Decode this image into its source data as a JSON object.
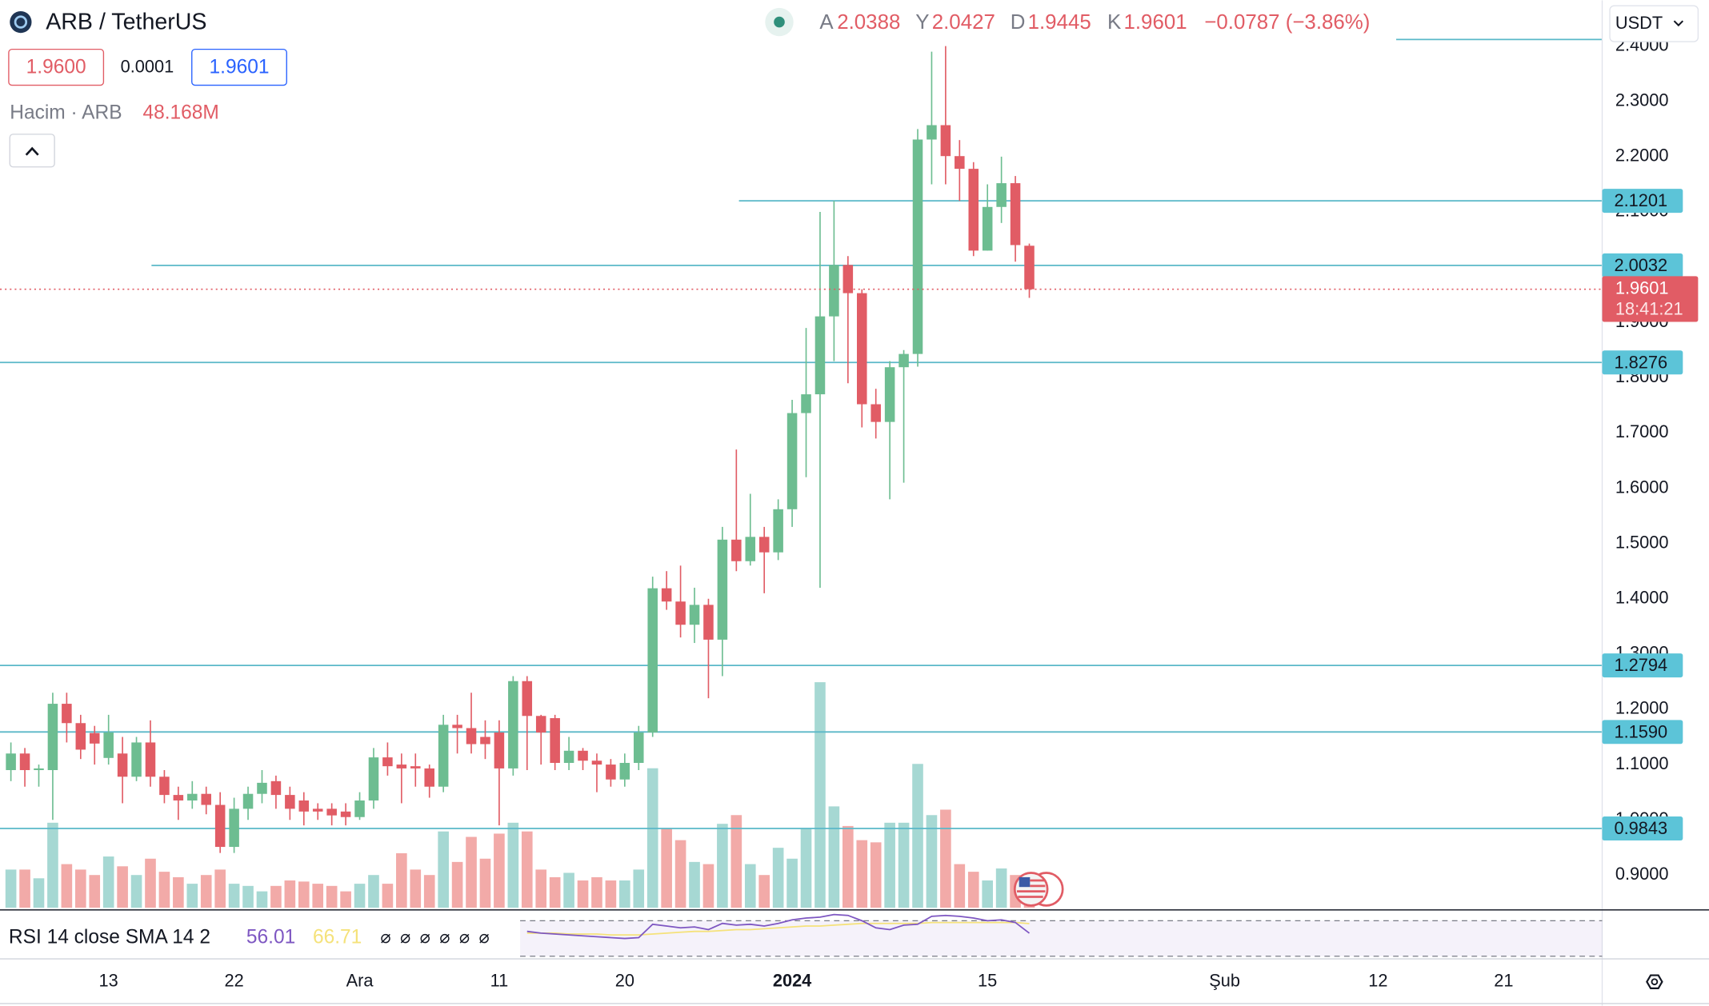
{
  "header": {
    "symbol": "ARB / TetherUS",
    "ohlc": [
      {
        "label": "A",
        "value": "2.0388"
      },
      {
        "label": "Y",
        "value": "2.0427"
      },
      {
        "label": "D",
        "value": "1.9445"
      },
      {
        "label": "K",
        "value": "1.9601"
      }
    ],
    "change": "−0.0787 (−3.86%)"
  },
  "order": {
    "sell": "1.9600",
    "spread": "0.0001",
    "buy": "1.9601"
  },
  "volume_legend": {
    "label": "Hacim · ARB",
    "value": "48.168M"
  },
  "currency": "USDT",
  "countdown": "18:41:21",
  "chart_data": {
    "type": "candlestick",
    "categories": [
      null,
      null,
      null,
      null,
      null,
      null,
      null,
      "13",
      null,
      null,
      null,
      null,
      null,
      null,
      null,
      null,
      "22",
      null,
      null,
      null,
      null,
      null,
      null,
      null,
      null,
      "Ara",
      null,
      null,
      null,
      null,
      null,
      null,
      null,
      null,
      null,
      "11",
      null,
      null,
      null,
      null,
      null,
      null,
      null,
      null,
      "20",
      null,
      null,
      null,
      null,
      null,
      null,
      null,
      null,
      null,
      null,
      null,
      "2024",
      null,
      null,
      null,
      null,
      null,
      null,
      null,
      null,
      null,
      null,
      null,
      null,
      null,
      "15",
      null,
      null,
      null,
      null,
      null,
      null,
      null,
      null,
      null,
      null,
      null,
      null,
      null,
      null,
      null,
      null,
      "Şub",
      null,
      null,
      null,
      null,
      null,
      null,
      null,
      null,
      null,
      null,
      "12",
      null,
      null,
      null,
      null,
      null,
      null,
      null,
      null,
      "21",
      null,
      null,
      null,
      null,
      null,
      null,
      null
    ],
    "open": [
      1.09,
      1.12,
      1.09,
      1.09,
      1.21,
      1.175,
      1.157,
      1.112,
      1.12,
      1.078,
      1.14,
      1.078,
      1.045,
      1.035,
      1.047,
      1.027,
      0.951,
      1.02,
      1.047,
      1.07,
      1.045,
      1.035,
      1.02,
      1.02,
      1.015,
      1.005,
      1.035,
      1.113,
      1.1,
      1.097,
      1.093,
      1.06,
      1.172,
      1.166,
      1.15,
      1.158,
      1.093,
      1.251,
      1.188,
      1.184,
      1.103,
      1.125,
      1.107,
      1.1,
      1.073,
      1.103,
      1.158,
      1.419,
      1.395,
      1.353,
      1.389,
      1.326,
      1.507,
      1.468,
      1.512,
      1.484,
      1.562,
      1.736,
      1.77,
      1.911,
      2.004,
      1.953,
      1.752,
      1.72,
      1.819,
      1.843,
      2.231,
      2.257,
      2.201,
      2.178,
      2.03,
      2.109,
      2.152,
      2.0388,
      null,
      null,
      null,
      null,
      null,
      null,
      null,
      null,
      null,
      null,
      null,
      null,
      null,
      null,
      null,
      null,
      null,
      null,
      null,
      null,
      null,
      null,
      null,
      null,
      null,
      null,
      null,
      null,
      null,
      null,
      null,
      null,
      null,
      null,
      null,
      null,
      null,
      null,
      null,
      null,
      null
    ],
    "high": [
      1.14,
      1.13,
      1.1,
      1.23,
      1.23,
      1.19,
      1.17,
      1.19,
      1.15,
      1.15,
      1.18,
      1.09,
      1.06,
      1.07,
      1.06,
      1.05,
      1.04,
      1.06,
      1.09,
      1.08,
      1.06,
      1.05,
      1.03,
      1.03,
      1.03,
      1.05,
      1.13,
      1.14,
      1.12,
      1.12,
      1.1,
      1.19,
      1.19,
      1.23,
      1.18,
      1.18,
      1.26,
      1.26,
      1.19,
      1.19,
      1.15,
      1.13,
      1.12,
      1.11,
      1.12,
      1.17,
      1.44,
      1.45,
      1.46,
      1.42,
      1.4,
      1.53,
      1.67,
      1.59,
      1.53,
      1.58,
      1.76,
      1.89,
      2.1,
      2.12,
      2.02,
      1.96,
      1.78,
      1.83,
      1.85,
      2.25,
      2.39,
      2.4,
      2.23,
      2.19,
      2.15,
      2.2,
      2.165,
      2.0427,
      null,
      null,
      null,
      null,
      null,
      null,
      null,
      null,
      null,
      null,
      null,
      null,
      null,
      null,
      null,
      null,
      null,
      null,
      null,
      null,
      null,
      null,
      null,
      null,
      null,
      null,
      null,
      null,
      null,
      null,
      null,
      null,
      null,
      null,
      null,
      null,
      null,
      null,
      null,
      null,
      null
    ],
    "low": [
      1.07,
      1.06,
      1.06,
      1.0,
      1.14,
      1.11,
      1.1,
      1.1,
      1.03,
      1.07,
      1.06,
      1.03,
      1.0,
      1.02,
      1.01,
      0.94,
      0.94,
      1.0,
      1.03,
      1.02,
      1.0,
      0.99,
      1.0,
      0.99,
      0.99,
      1.0,
      1.02,
      1.08,
      1.03,
      1.06,
      1.04,
      1.05,
      1.12,
      1.12,
      1.11,
      0.99,
      1.08,
      1.09,
      1.1,
      1.09,
      1.09,
      1.09,
      1.05,
      1.06,
      1.06,
      1.09,
      1.15,
      1.38,
      1.33,
      1.32,
      1.22,
      1.26,
      1.45,
      1.46,
      1.41,
      1.47,
      1.53,
      1.62,
      1.42,
      1.83,
      1.79,
      1.71,
      1.69,
      1.58,
      1.61,
      1.82,
      2.15,
      2.15,
      2.12,
      2.02,
      2.03,
      2.08,
      2.01,
      1.9445,
      null,
      null,
      null,
      null,
      null,
      null,
      null,
      null,
      null,
      null,
      null,
      null,
      null,
      null,
      null,
      null,
      null,
      null,
      null,
      null,
      null,
      null,
      null,
      null,
      null,
      null,
      null,
      null,
      null,
      null,
      null,
      null,
      null,
      null,
      null,
      null,
      null,
      null,
      null,
      null,
      null
    ],
    "close": [
      1.12,
      1.09,
      1.093,
      1.21,
      1.175,
      1.127,
      1.138,
      1.158,
      1.078,
      1.14,
      1.078,
      1.045,
      1.035,
      1.047,
      1.027,
      0.951,
      1.02,
      1.047,
      1.067,
      1.045,
      1.02,
      1.015,
      1.015,
      1.008,
      1.005,
      1.035,
      1.113,
      1.097,
      1.093,
      1.093,
      1.06,
      1.172,
      1.166,
      1.137,
      1.137,
      1.093,
      1.251,
      1.188,
      1.158,
      1.103,
      1.125,
      1.107,
      1.1,
      1.073,
      1.103,
      1.158,
      1.419,
      1.395,
      1.353,
      1.389,
      1.326,
      1.507,
      1.468,
      1.512,
      1.484,
      1.562,
      1.736,
      1.77,
      1.911,
      2.004,
      1.953,
      1.752,
      1.72,
      1.819,
      1.843,
      2.231,
      2.257,
      2.201,
      2.178,
      2.03,
      2.109,
      2.152,
      2.04,
      1.9601,
      null,
      null,
      null,
      null,
      null,
      null,
      null,
      null,
      null,
      null,
      null,
      null,
      null,
      null,
      null,
      null,
      null,
      null,
      null,
      null,
      null,
      null,
      null,
      null,
      null,
      null,
      null,
      null,
      null,
      null,
      null,
      null,
      null,
      null,
      null,
      null,
      null,
      null,
      null,
      null,
      null
    ],
    "volume": [
      56,
      56,
      43.2,
      124.8,
      64,
      56,
      48,
      75.2,
      60.8,
      48,
      72,
      52.8,
      44.8,
      35.2,
      48,
      56,
      35.2,
      32,
      24,
      32,
      40,
      38.4,
      35.2,
      32,
      24,
      35.2,
      48,
      35.2,
      80,
      56,
      48,
      112,
      67.2,
      104,
      72,
      108.8,
      124.8,
      112,
      56,
      44.8,
      51.2,
      40,
      44.8,
      40,
      40,
      56,
      204.8,
      116.8,
      99.2,
      67.2,
      64,
      123.2,
      136,
      64,
      48,
      88,
      72,
      116.8,
      331.2,
      148.8,
      120,
      99.2,
      96,
      124.8,
      124.8,
      211.2,
      136,
      144,
      64,
      52.8,
      40,
      57.6,
      48,
      48.168,
      null,
      null,
      null,
      null,
      null,
      null,
      null,
      null,
      null,
      null,
      null,
      null,
      null,
      null,
      null,
      null,
      null,
      null,
      null,
      null,
      null,
      null,
      null,
      null,
      null,
      null,
      null,
      null,
      null,
      null,
      null,
      null,
      null,
      null,
      null,
      null,
      null,
      null,
      null,
      null,
      null
    ],
    "up_color": "#6dbd91",
    "down_color": "#e15c65",
    "volume_up_color": "#a6d8d3",
    "volume_down_color": "#f2aaa8",
    "ylim": [
      0.841,
      2.483
    ],
    "yticks": [
      {
        "value": 0.9,
        "label": "0.9000"
      },
      {
        "value": 1.0,
        "label": "1.0000"
      },
      {
        "value": 1.1,
        "label": "1.1000"
      },
      {
        "value": 1.2,
        "label": "1.2000"
      },
      {
        "value": 1.3,
        "label": "1.3000"
      },
      {
        "value": 1.4,
        "label": "1.4000"
      },
      {
        "value": 1.5,
        "label": "1.5000"
      },
      {
        "value": 1.6,
        "label": "1.6000"
      },
      {
        "value": 1.7,
        "label": "1.7000"
      },
      {
        "value": 1.8,
        "label": "1.8000"
      },
      {
        "value": 1.9,
        "label": "1.9000"
      },
      {
        "value": 2.0,
        "label": "2.0000"
      },
      {
        "value": 2.1,
        "label": "2.1000"
      },
      {
        "value": 2.2,
        "label": "2.2000"
      },
      {
        "value": 2.3,
        "label": "2.3000"
      },
      {
        "value": 2.4,
        "label": "2.4000"
      }
    ],
    "grid": false,
    "levels": [
      2.1201,
      2.0032,
      1.8276,
      1.2794,
      {
        "value": 1.159,
        "label": "1.1590"
      },
      0.9843
    ],
    "level_color": "#5ab8c8",
    "top_line": 2.412,
    "indicator": {
      "label": "RSI 14 close SMA 14 2",
      "rsi": [
        null,
        null,
        null,
        null,
        null,
        null,
        null,
        null,
        null,
        null,
        null,
        null,
        null,
        null,
        null,
        null,
        null,
        null,
        null,
        null,
        null,
        null,
        null,
        null,
        null,
        null,
        null,
        null,
        null,
        null,
        null,
        null,
        null,
        null,
        null,
        null,
        null,
        58,
        56,
        55,
        54,
        53,
        52,
        51,
        50,
        51,
        66,
        64,
        62,
        63,
        60,
        67,
        65,
        66,
        64,
        67,
        71,
        73,
        74,
        77,
        76,
        70,
        62,
        60,
        65,
        66,
        75,
        76,
        75,
        73,
        70,
        71,
        68,
        56.01,
        null,
        null,
        null,
        null,
        null,
        null,
        null,
        null,
        null,
        null,
        null,
        null,
        null,
        null,
        null,
        null,
        null,
        null,
        null,
        null,
        null,
        null,
        null,
        null,
        null,
        null,
        null,
        null,
        null,
        null,
        null,
        null,
        null,
        null,
        null,
        null,
        null,
        null,
        null,
        null,
        null
      ],
      "sma": [
        null,
        null,
        null,
        null,
        null,
        null,
        null,
        null,
        null,
        null,
        null,
        null,
        null,
        null,
        null,
        null,
        null,
        null,
        null,
        null,
        null,
        null,
        null,
        null,
        null,
        null,
        null,
        null,
        null,
        null,
        null,
        null,
        null,
        null,
        null,
        null,
        null,
        56,
        56,
        56,
        55,
        55,
        55,
        54,
        54,
        54,
        55,
        56,
        57,
        58,
        58,
        59,
        60,
        60,
        61,
        62,
        63,
        64,
        64,
        65,
        66,
        67,
        67,
        67,
        67,
        67,
        68,
        68,
        68,
        68,
        68,
        68,
        68,
        66.71,
        null,
        null,
        null,
        null,
        null,
        null,
        null,
        null,
        null,
        null,
        null,
        null,
        null,
        null,
        null,
        null,
        null,
        null,
        null,
        null,
        null,
        null,
        null,
        null,
        null,
        null,
        null,
        null,
        null,
        null,
        null,
        null,
        null,
        null,
        null,
        null,
        null,
        null,
        null,
        null,
        null
      ],
      "rsi_color": "#7e57c2",
      "sma_color": "#f5e27a",
      "ylim": [
        27,
        81
      ],
      "bands": [
        30,
        70
      ],
      "na_markers": "⌀ ⌀ ⌀ ⌀ ⌀ ⌀"
    }
  }
}
